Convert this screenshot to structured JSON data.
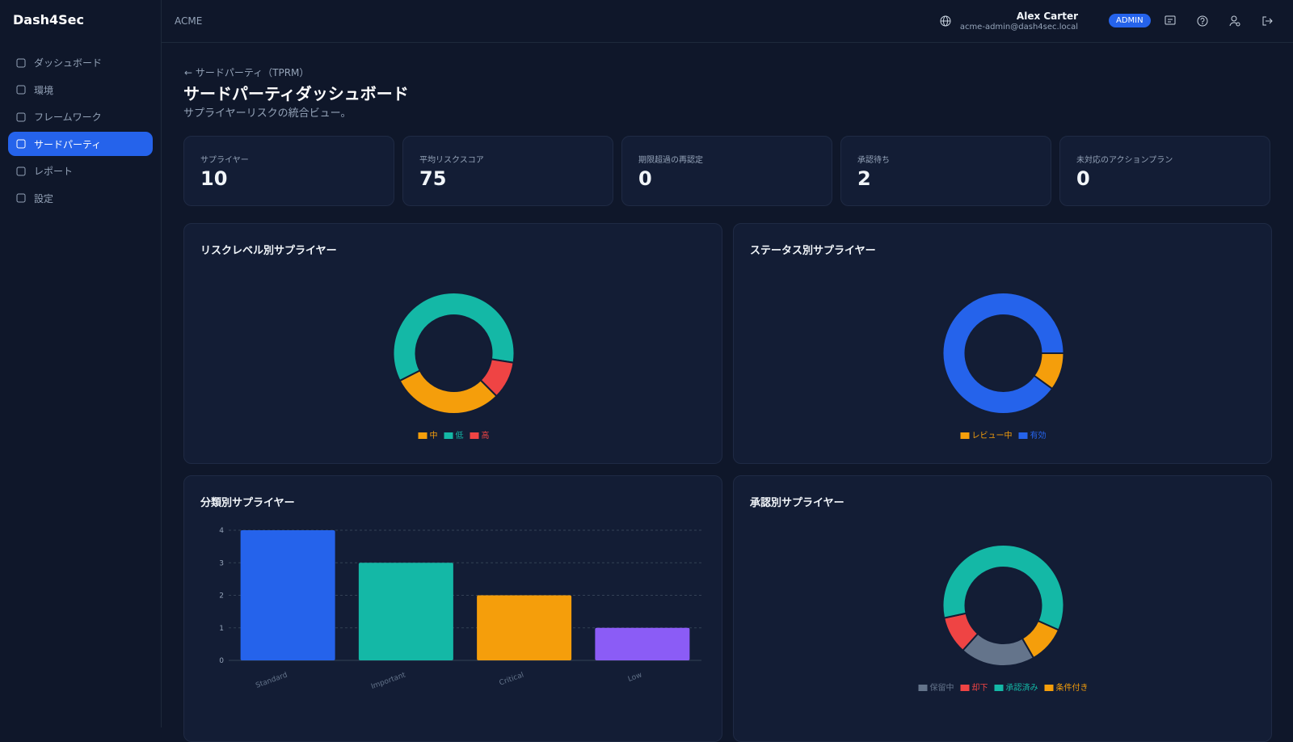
{
  "header": {
    "brand": "Dash4Sec",
    "org": "ACME",
    "user_name": "Alex Carter",
    "user_email": "acme-admin@dash4sec.local",
    "role": "ADMIN"
  },
  "nav": [
    "ダッシュボード",
    "環境",
    "フレームワーク",
    "サードパーティ",
    "レポート",
    "設定"
  ],
  "page": {
    "breadcrumb": "サードパーティ（TPRM）",
    "title": "サードパーティダッシュボード",
    "subtitle": "サプライヤーリスクの統合ビュー。"
  },
  "kpis": [
    {
      "label": "サプライヤー",
      "value": 10
    },
    {
      "label": "平均リスクスコア",
      "value": 75
    },
    {
      "label": "期限超過の再認定",
      "value": 0
    },
    {
      "label": "承認待ち",
      "value": 2
    },
    {
      "label": "未対応のアクションプラン",
      "value": 0
    }
  ],
  "chart_data": [
    {
      "type": "donut",
      "title": "リスクレベル別サプライヤー",
      "categories": [
        "中",
        "低",
        "高"
      ],
      "values": [
        3,
        6,
        1
      ],
      "colors": [
        "#f59e0b",
        "#14b8a6",
        "#ef4444"
      ]
    },
    {
      "type": "donut",
      "title": "ステータス別サプライヤー",
      "categories": [
        "レビュー中",
        "有効"
      ],
      "values": [
        1,
        9
      ],
      "colors": [
        "#f59e0b",
        "#2563eb"
      ]
    },
    {
      "type": "bar",
      "title": "分類別サプライヤー",
      "categories": [
        "Standard",
        "Important",
        "Critical",
        "Low"
      ],
      "values": [
        4,
        3,
        2,
        1
      ],
      "colors": [
        "#2563eb",
        "#14b8a6",
        "#f59e0b",
        "#8b5cf6"
      ],
      "ylim": [
        0,
        4
      ],
      "yticks": [
        0,
        1,
        2,
        3,
        4
      ],
      "grid": true
    },
    {
      "type": "donut",
      "title": "承認別サプライヤー",
      "categories": [
        "保留中",
        "却下",
        "承認済み",
        "条件付き"
      ],
      "values": [
        2,
        1,
        6,
        1
      ],
      "colors": [
        "#64748b",
        "#ef4444",
        "#14b8a6",
        "#f59e0b"
      ]
    }
  ]
}
